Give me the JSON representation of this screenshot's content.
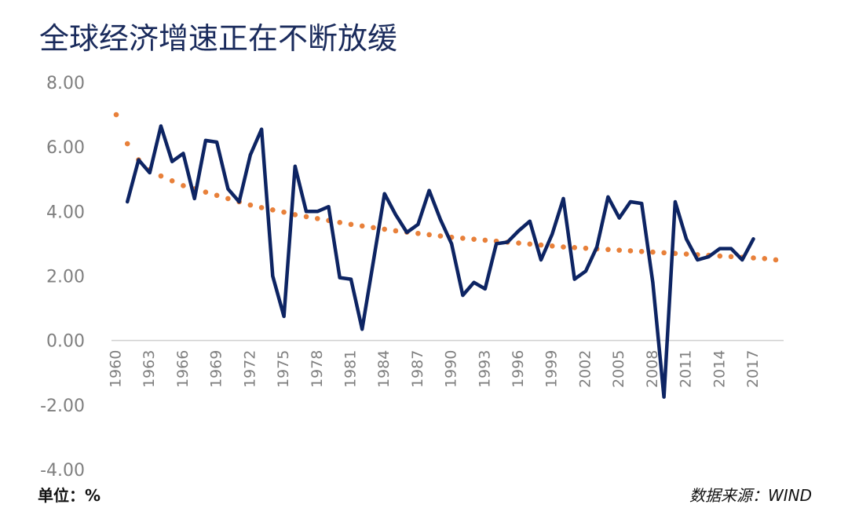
{
  "title": "全球经济增速正在不断放缓",
  "unit_label": "单位：%",
  "source_label": "数据来源：WIND",
  "chart_data": {
    "type": "line",
    "title": "全球经济增速正在不断放缓",
    "xlabel": "",
    "ylabel": "",
    "ylim": [
      -4,
      8
    ],
    "xlim": [
      1960,
      2019
    ],
    "grid": false,
    "legend": "none",
    "y_ticks": [
      "8.00",
      "6.00",
      "4.00",
      "2.00",
      "0.00",
      "-2.00",
      "-4.00"
    ],
    "x_ticks": [
      "1960",
      "1963",
      "1966",
      "1969",
      "1972",
      "1975",
      "1978",
      "1981",
      "1984",
      "1987",
      "1990",
      "1993",
      "1996",
      "1999",
      "2002",
      "2005",
      "2008",
      "2011",
      "2014",
      "2017"
    ],
    "series": [
      {
        "name": "",
        "style": "solid",
        "color": "#0d2463",
        "x": [
          1961,
          1962,
          1963,
          1964,
          1965,
          1966,
          1967,
          1968,
          1969,
          1970,
          1971,
          1972,
          1973,
          1974,
          1975,
          1976,
          1977,
          1978,
          1979,
          1980,
          1981,
          1982,
          1983,
          1984,
          1985,
          1986,
          1987,
          1988,
          1989,
          1990,
          1991,
          1992,
          1993,
          1994,
          1995,
          1996,
          1997,
          1998,
          1999,
          2000,
          2001,
          2002,
          2003,
          2004,
          2005,
          2006,
          2007,
          2008,
          2009,
          2010,
          2011,
          2012,
          2013,
          2014,
          2015,
          2016,
          2017
        ],
        "values": [
          4.3,
          5.6,
          5.2,
          6.65,
          5.55,
          5.8,
          4.4,
          6.2,
          6.15,
          4.7,
          4.3,
          5.75,
          6.55,
          2.0,
          0.75,
          5.4,
          4.0,
          4.0,
          4.15,
          1.95,
          1.9,
          0.35,
          2.45,
          4.55,
          3.9,
          3.35,
          3.6,
          4.65,
          3.75,
          3.0,
          1.4,
          1.8,
          1.6,
          3.0,
          3.05,
          3.4,
          3.7,
          2.5,
          3.3,
          4.4,
          1.9,
          2.15,
          2.9,
          4.45,
          3.8,
          4.3,
          4.25,
          1.8,
          -1.75,
          4.3,
          3.15,
          2.5,
          2.6,
          2.85,
          2.85,
          2.5,
          3.15
        ]
      },
      {
        "name": "",
        "style": "dotted",
        "color": "#e8803a",
        "x": [
          1960,
          1961,
          1962,
          1963,
          1964,
          1965,
          1966,
          1967,
          1968,
          1969,
          1970,
          1971,
          1972,
          1973,
          1974,
          1975,
          1976,
          1977,
          1978,
          1979,
          1980,
          1981,
          1982,
          1983,
          1984,
          1985,
          1986,
          1987,
          1988,
          1989,
          1990,
          1991,
          1992,
          1993,
          1994,
          1995,
          1996,
          1997,
          1998,
          1999,
          2000,
          2001,
          2002,
          2003,
          2004,
          2005,
          2006,
          2007,
          2008,
          2009,
          2010,
          2011,
          2012,
          2013,
          2014,
          2015,
          2016,
          2017,
          2018,
          2019
        ],
        "values": [
          7.0,
          6.1,
          5.6,
          5.3,
          5.1,
          4.95,
          4.8,
          4.7,
          4.6,
          4.5,
          4.4,
          4.3,
          4.2,
          4.12,
          4.05,
          3.98,
          3.9,
          3.84,
          3.78,
          3.72,
          3.66,
          3.6,
          3.55,
          3.5,
          3.45,
          3.4,
          3.36,
          3.32,
          3.28,
          3.24,
          3.2,
          3.17,
          3.14,
          3.11,
          3.08,
          3.05,
          3.02,
          2.99,
          2.96,
          2.93,
          2.9,
          2.88,
          2.86,
          2.84,
          2.82,
          2.8,
          2.78,
          2.76,
          2.74,
          2.72,
          2.7,
          2.68,
          2.66,
          2.64,
          2.62,
          2.6,
          2.58,
          2.56,
          2.54,
          2.5
        ]
      }
    ]
  }
}
